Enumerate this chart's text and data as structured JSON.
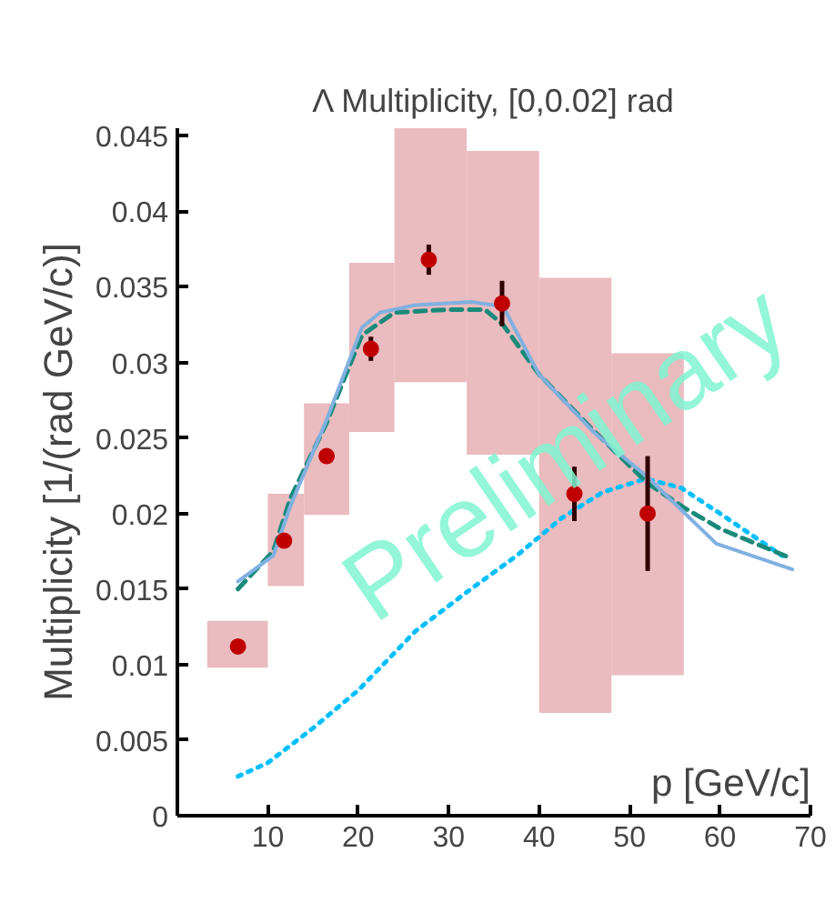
{
  "chart_data": {
    "type": "scatter",
    "title": "Λ Multiplicity, [0,0.02] rad",
    "xlabel": "p [GeV/c]",
    "ylabel": "Multiplicity [1/(rad GeV/c)]",
    "xlim": [
      0,
      70
    ],
    "ylim": [
      0,
      0.0455
    ],
    "xticks": [
      10,
      20,
      30,
      40,
      50,
      60,
      70
    ],
    "yticks": [
      0,
      0.005,
      0.01,
      0.015,
      0.02,
      0.025,
      0.03,
      0.035,
      0.04,
      0.045
    ],
    "grid": false,
    "annotations": [
      "Preliminary"
    ],
    "series": [
      {
        "type": "histogram",
        "color": "#e8b4b8",
        "bins": [
          3.3,
          10,
          14,
          19,
          24,
          32,
          40,
          48,
          56
        ],
        "base": [
          0.0098,
          0.0152,
          0.0199,
          0.0254,
          0.0287,
          0.0239,
          0.0068,
          0.0093
        ],
        "values": [
          0.0031,
          0.0061,
          0.0074,
          0.0112,
          0.0168,
          0.0201,
          0.0288,
          0.0213
        ]
      },
      {
        "type": "line",
        "color": "#00bfff",
        "line_style": "dotted",
        "x": [
          6.7,
          10,
          15,
          20,
          26.3,
          32,
          37.5,
          42.5,
          47,
          51.8,
          55.7,
          60,
          66.9
        ],
        "values": [
          0.0026,
          0.0035,
          0.0058,
          0.0083,
          0.0122,
          0.0148,
          0.0172,
          0.0197,
          0.0214,
          0.0223,
          0.0217,
          0.02,
          0.0172
        ]
      },
      {
        "type": "line",
        "color": "#1a8a7a",
        "line_style": "dashed",
        "x": [
          6.7,
          10.6,
          12.5,
          16.5,
          20.4,
          24,
          30,
          34,
          36,
          40,
          46,
          52,
          56,
          60,
          68
        ],
        "values": [
          0.015,
          0.0175,
          0.021,
          0.026,
          0.0318,
          0.0333,
          0.0335,
          0.0335,
          0.0325,
          0.0292,
          0.0255,
          0.022,
          0.0204,
          0.019,
          0.017
        ]
      },
      {
        "type": "line",
        "color": "#7fb0e0",
        "line_style": "solid",
        "x": [
          6.7,
          10.6,
          12.5,
          16.5,
          20.4,
          22.4,
          26.3,
          32.5,
          36,
          40,
          46,
          52,
          59.6,
          68
        ],
        "values": [
          0.0155,
          0.0172,
          0.0205,
          0.0262,
          0.0323,
          0.0333,
          0.0338,
          0.034,
          0.0337,
          0.0292,
          0.0254,
          0.0224,
          0.018,
          0.0163
        ]
      },
      {
        "color": "#c00000",
        "marker": "circle",
        "x": [
          6.7,
          11.8,
          16.5,
          21.4,
          27.8,
          35.9,
          43.9,
          52
        ],
        "values": [
          0.0112,
          0.0182,
          0.0238,
          0.0309,
          0.0368,
          0.0339,
          0.0213,
          0.02
        ],
        "errors": [
          null,
          null,
          null,
          0.0008,
          0.001,
          0.0015,
          0.0018,
          0.0038
        ]
      }
    ]
  }
}
